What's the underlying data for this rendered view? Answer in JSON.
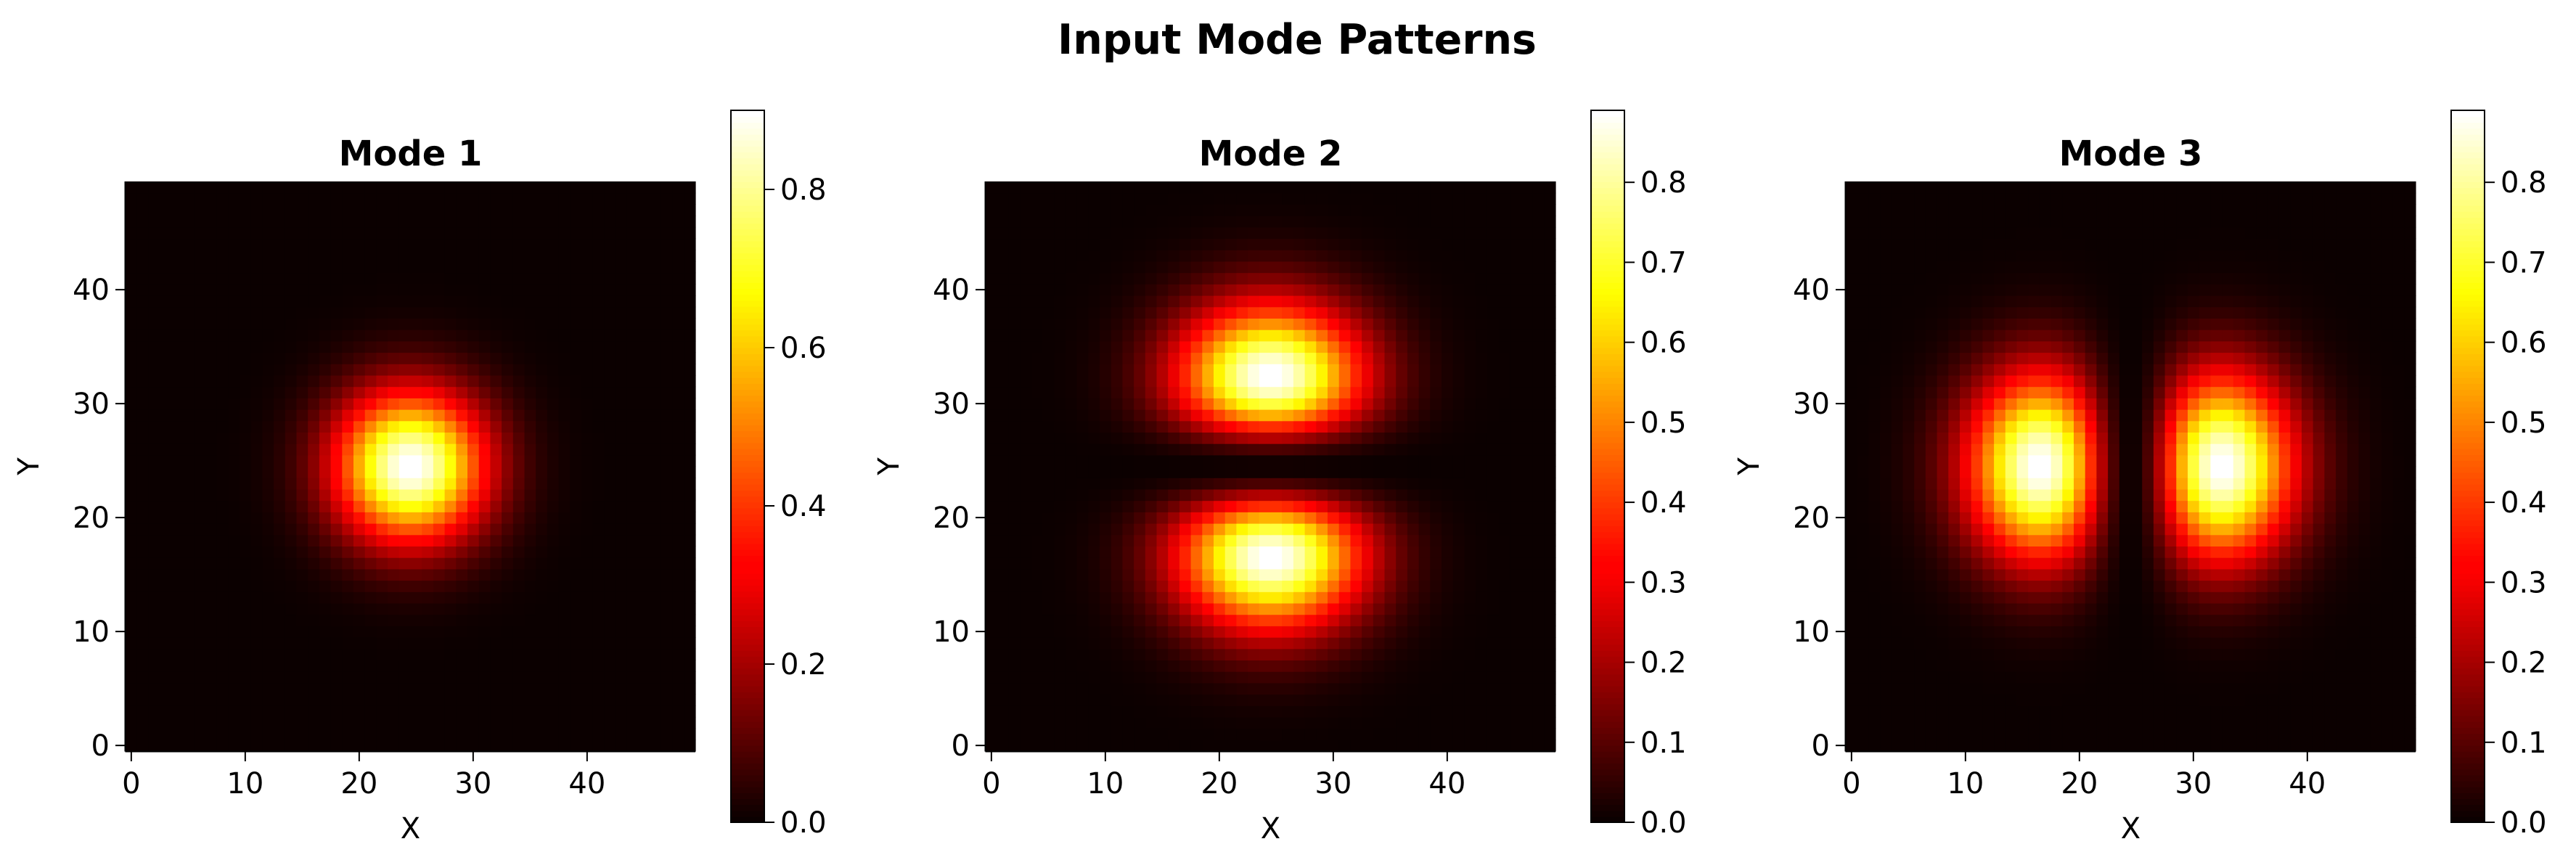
{
  "figure": {
    "title": "Input Mode Patterns"
  },
  "colormap": {
    "name": "hot",
    "stops": [
      "#0b0000",
      "#ff0000",
      "#ffff00",
      "#ffffff"
    ]
  },
  "chart_data": [
    {
      "type": "heatmap",
      "title": "Mode 1",
      "xlabel": "X",
      "ylabel": "Y",
      "grid_size": [
        50,
        50
      ],
      "xlim": [
        -0.5,
        49.5
      ],
      "ylim": [
        -0.5,
        49.5
      ],
      "xticks": [
        0,
        10,
        20,
        30,
        40
      ],
      "yticks": [
        0,
        10,
        20,
        30,
        40
      ],
      "colorbar": {
        "min": 0.0,
        "max": 0.9,
        "ticks": [
          "0.0",
          "0.2",
          "0.4",
          "0.6",
          "0.8"
        ]
      },
      "mode": {
        "m": 0,
        "n": 0,
        "peak": 0.9,
        "center": [
          24.5,
          24.5
        ],
        "width": 6.5
      },
      "grid": false
    },
    {
      "type": "heatmap",
      "title": "Mode 2",
      "xlabel": "X",
      "ylabel": "Y",
      "grid_size": [
        50,
        50
      ],
      "xlim": [
        -0.5,
        49.5
      ],
      "ylim": [
        -0.5,
        49.5
      ],
      "xticks": [
        0,
        10,
        20,
        30,
        40
      ],
      "yticks": [
        0,
        10,
        20,
        30,
        40
      ],
      "colorbar": {
        "min": 0.0,
        "max": 0.89,
        "ticks": [
          "0.0",
          "0.1",
          "0.2",
          "0.3",
          "0.4",
          "0.5",
          "0.6",
          "0.7",
          "0.8"
        ]
      },
      "mode": {
        "m": 0,
        "n": 1,
        "peak": 0.89,
        "center": [
          24.5,
          24.5
        ],
        "width": 8.0
      },
      "grid": false
    },
    {
      "type": "heatmap",
      "title": "Mode 3",
      "xlabel": "X",
      "ylabel": "Y",
      "grid_size": [
        50,
        50
      ],
      "xlim": [
        -0.5,
        49.5
      ],
      "ylim": [
        -0.5,
        49.5
      ],
      "xticks": [
        0,
        10,
        20,
        30,
        40
      ],
      "yticks": [
        0,
        10,
        20,
        30,
        40
      ],
      "colorbar": {
        "min": 0.0,
        "max": 0.89,
        "ticks": [
          "0.0",
          "0.1",
          "0.2",
          "0.3",
          "0.4",
          "0.5",
          "0.6",
          "0.7",
          "0.8"
        ]
      },
      "mode": {
        "m": 1,
        "n": 0,
        "peak": 0.89,
        "center": [
          24.5,
          24.5
        ],
        "width": 8.0
      },
      "grid": false
    }
  ]
}
